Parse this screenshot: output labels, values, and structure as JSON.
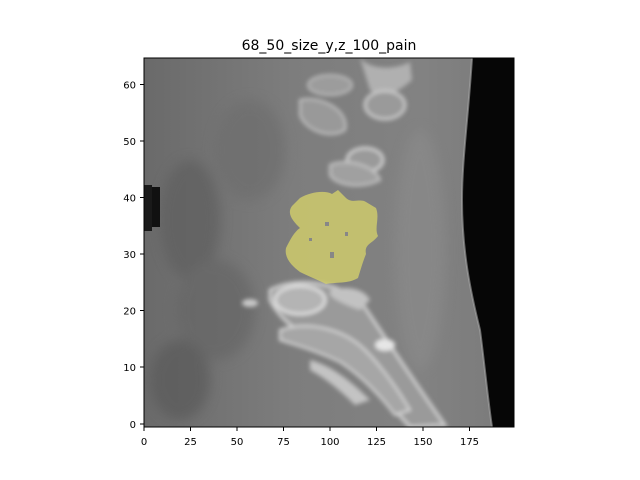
{
  "title": "68_50_size_y,z_100_pain",
  "image": {
    "xlim": [
      0,
      199
    ],
    "ylim": [
      0,
      64
    ],
    "overlay_color": "#d9d56a",
    "background_color": "#7e7e7e"
  },
  "axes": {
    "xticks": [
      "0",
      "25",
      "50",
      "75",
      "100",
      "125",
      "150",
      "175"
    ],
    "yticks": [
      "0",
      "10",
      "20",
      "30",
      "40",
      "50",
      "60"
    ]
  }
}
